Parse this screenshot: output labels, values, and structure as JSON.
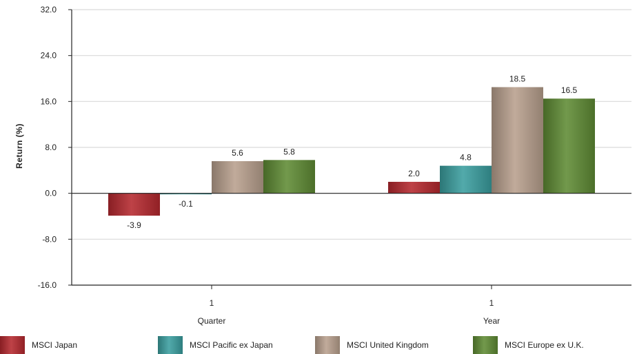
{
  "chart_data": {
    "type": "bar",
    "ylabel": "Return (%)",
    "xlabel": "",
    "ylim": [
      -16,
      32
    ],
    "yticks": [
      "32.0",
      "24.0",
      "16.0",
      "8.0",
      "0.0",
      "-8.0",
      "-16.0"
    ],
    "grid": true,
    "legend_placement": "bottom",
    "categories": [
      {
        "tick": "1",
        "label": "Quarter"
      },
      {
        "tick": "1",
        "label": "Year"
      }
    ],
    "series": [
      {
        "name": "MSCI Japan",
        "color": "#b5282e",
        "values": [
          -3.9,
          2.0
        ],
        "labels": [
          "-3.9",
          "2.0"
        ]
      },
      {
        "name": "MSCI Pacific ex Japan",
        "color": "#3a9e9f",
        "values": [
          -0.1,
          4.8
        ],
        "labels": [
          "-0.1",
          "4.8"
        ]
      },
      {
        "name": "MSCI United Kingdom",
        "color": "#b8a08d",
        "values": [
          5.6,
          18.5
        ],
        "labels": [
          "5.6",
          "18.5"
        ]
      },
      {
        "name": "MSCI Europe ex U.K.",
        "color": "#5f8b34",
        "values": [
          5.8,
          16.5
        ],
        "labels": [
          "5.8",
          "16.5"
        ]
      }
    ]
  }
}
